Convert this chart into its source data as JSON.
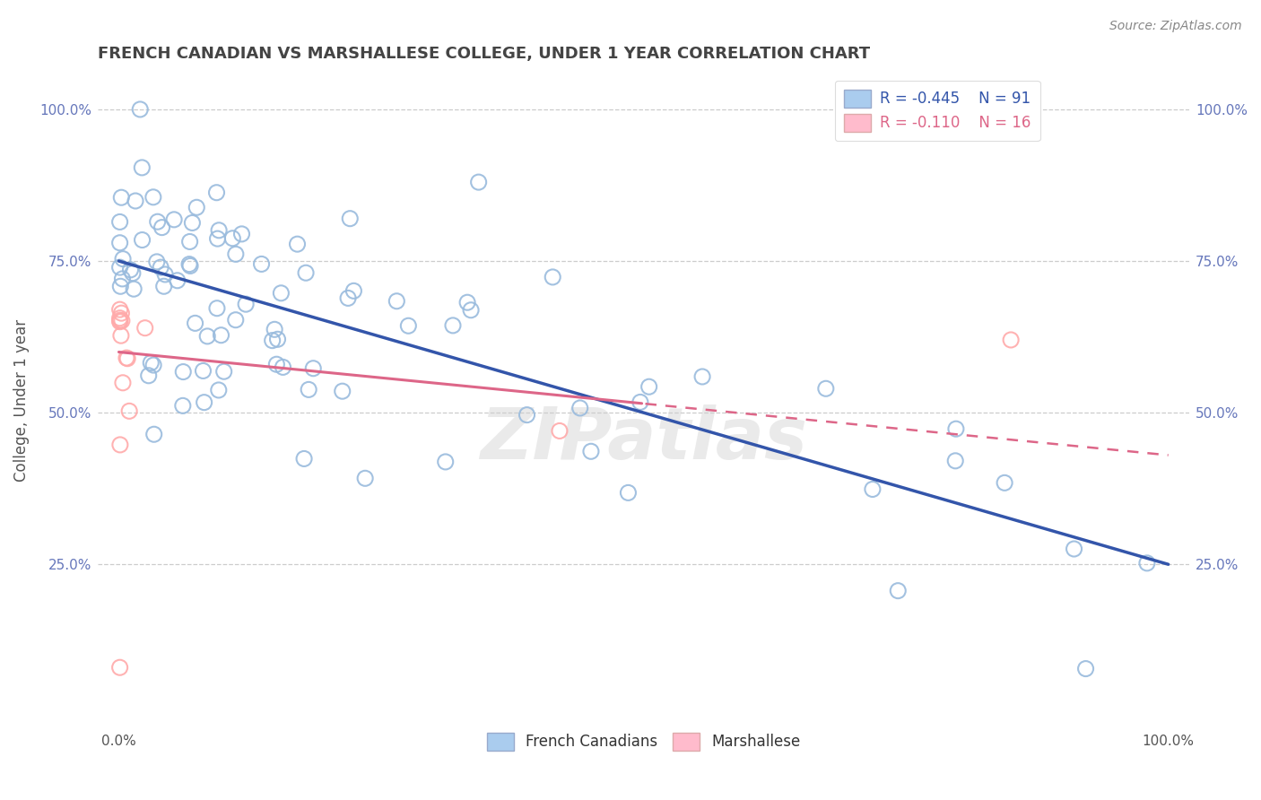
{
  "title": "FRENCH CANADIAN VS MARSHALLESE COLLEGE, UNDER 1 YEAR CORRELATION CHART",
  "source_text": "Source: ZipAtlas.com",
  "ylabel": "College, Under 1 year",
  "legend_r1": "R = -0.445",
  "legend_n1": "N = 91",
  "legend_r2": "R = -0.110",
  "legend_n2": "N = 16",
  "blue_scatter_color": "#99BBDD",
  "pink_scatter_color": "#FFAAAA",
  "blue_line_color": "#3355AA",
  "pink_line_color": "#DD6688",
  "legend_blue_fill": "#AACCEE",
  "legend_pink_fill": "#FFBBCC",
  "watermark": "ZIPatlas",
  "background_color": "#FFFFFF",
  "grid_color": "#CCCCCC",
  "title_color": "#444444",
  "source_color": "#888888",
  "tick_color_y": "#6677BB",
  "tick_color_x": "#555555",
  "ylabel_color": "#555555"
}
